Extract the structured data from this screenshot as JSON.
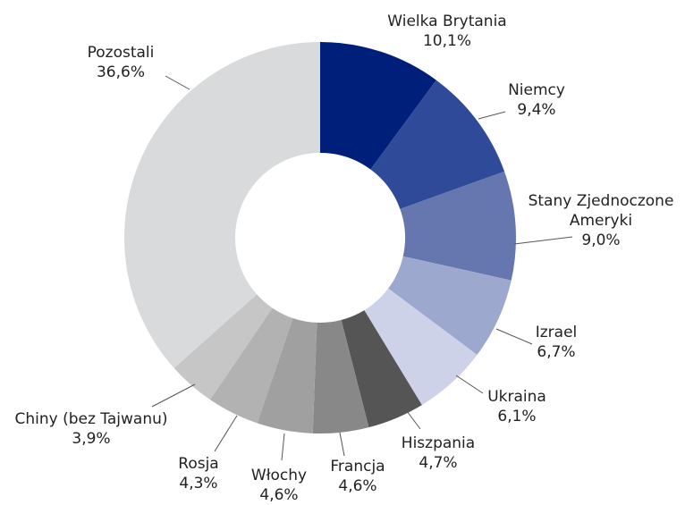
{
  "chart_data": {
    "type": "donut",
    "categories": [
      "Wielka Brytania",
      "Niemcy",
      "Stany Zjednoczone Ameryki",
      "Izrael",
      "Ukraina",
      "Hiszpania",
      "Francja",
      "Włochy",
      "Rosja",
      "Chiny (bez Tajwanu)",
      "Pozostali"
    ],
    "values": [
      10.1,
      9.4,
      9.0,
      6.7,
      6.1,
      4.7,
      4.6,
      4.6,
      4.3,
      3.9,
      36.6
    ],
    "value_labels": [
      "10,1%",
      "9,4%",
      "9,0%",
      "6,7%",
      "6,1%",
      "4,7%",
      "4,6%",
      "4,6%",
      "4,3%",
      "3,9%",
      "36,6%"
    ],
    "colors": [
      "#001f7a",
      "#2f4a98",
      "#6677b0",
      "#9ca8cd",
      "#cdd2e8",
      "#555555",
      "#888888",
      "#a0a0a0",
      "#b2b2b2",
      "#c6c6c6",
      "#d9dadb"
    ]
  }
}
